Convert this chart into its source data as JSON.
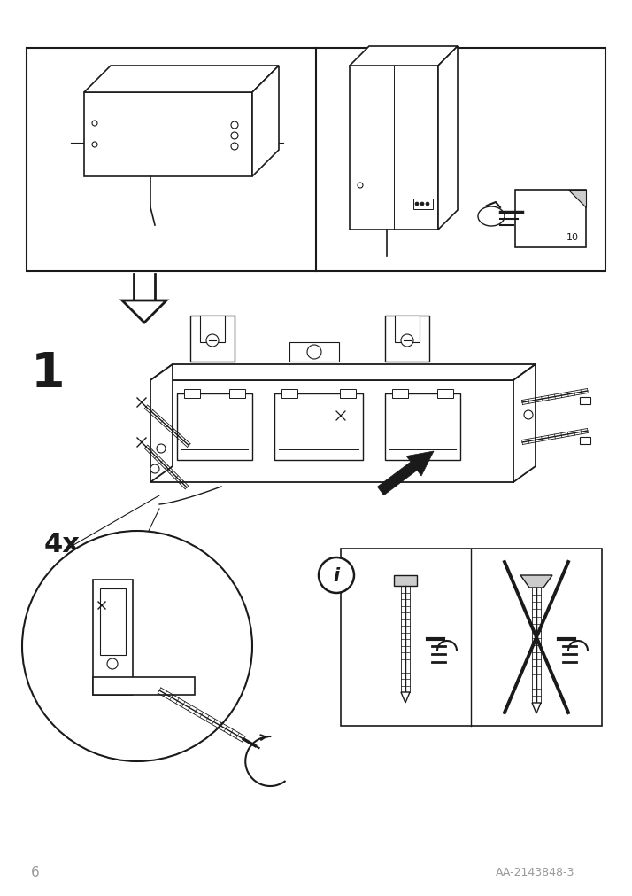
{
  "bg_color": "#ffffff",
  "line_color": "#1a1a1a",
  "light_gray": "#cccccc",
  "page_number": "6",
  "article_number": "AA-2143848-3",
  "step_number": "1",
  "quantity_label": "4x",
  "gray_color": "#999999"
}
